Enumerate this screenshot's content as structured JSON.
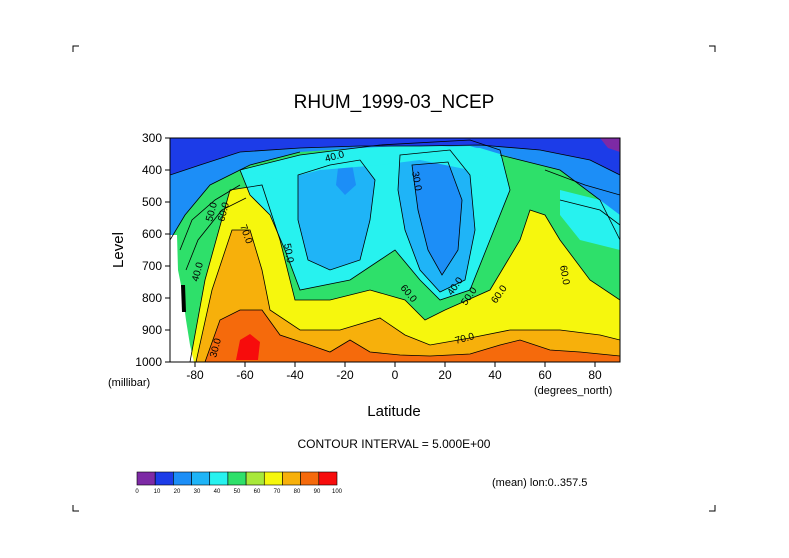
{
  "chart_data": {
    "type": "heatmap",
    "title": "RHUM_1999-03_NCEP",
    "xlabel": "Latitude",
    "ylabel": "Level",
    "x_unit": "(degrees_north)",
    "y_unit": "(millibar)",
    "x_ticks": [
      -80,
      -60,
      -40,
      -20,
      0,
      20,
      40,
      60,
      80
    ],
    "y_ticks": [
      300,
      400,
      500,
      600,
      700,
      800,
      900,
      1000
    ],
    "xlim": [
      -90,
      90
    ],
    "ylim": [
      1000,
      300
    ],
    "y_reversed": true,
    "contour_interval_text": "CONTOUR INTERVAL = 5.000E+00",
    "averaging_note": "(mean) lon:0..357.5",
    "contour_labels": [
      "40.0",
      "30.0",
      "50.0",
      "60.0",
      "70.0",
      "50.0",
      "40.0",
      "30.0",
      "60.0",
      "50.0",
      "40.0",
      "60.0",
      "70.0",
      "60.0"
    ],
    "colorbar": {
      "ticks": [
        "0",
        "10",
        "20",
        "30",
        "40",
        "50",
        "60",
        "70",
        "80",
        "90",
        "100"
      ],
      "colors": [
        "#7d2aa5",
        "#1c3ce8",
        "#1c8ef7",
        "#1fb4f7",
        "#27f2ef",
        "#2ee06a",
        "#a8e83a",
        "#f6f70d",
        "#f7b00b",
        "#f56a0c",
        "#f70c0c"
      ]
    },
    "grid": false
  }
}
